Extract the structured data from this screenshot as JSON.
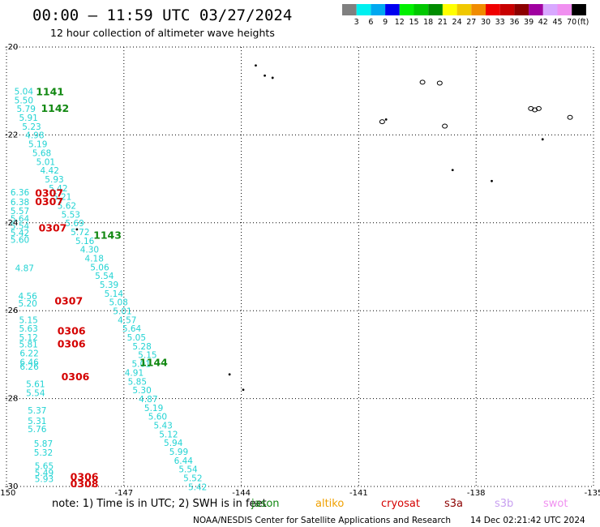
{
  "header": {
    "title": "00:00 – 11:59 UTC 03/27/2024",
    "subtitle": "12 hour collection of altimeter wave heights"
  },
  "legend": {
    "labels": [
      "3",
      "6",
      "9",
      "12",
      "15",
      "18",
      "21",
      "24",
      "27",
      "30",
      "33",
      "36",
      "39",
      "42",
      "45",
      "70"
    ],
    "unit": "(ft)",
    "colors": [
      "#808080",
      "#00f0f0",
      "#00a8f0",
      "#0000f0",
      "#00f000",
      "#00c800",
      "#008c00",
      "#ffff00",
      "#f0c800",
      "#f08c00",
      "#f00000",
      "#c80000",
      "#8c0000",
      "#a000a0",
      "#d8a8ff",
      "#f090f0",
      "#000000"
    ]
  },
  "map": {
    "lon_range": [
      -150,
      -135
    ],
    "lat_range": [
      -30,
      -20
    ],
    "lon_ticks": [
      "-150",
      "-147",
      "-144",
      "-141",
      "-138",
      "-135"
    ],
    "lat_ticks": [
      "-20",
      "-22",
      "-24",
      "-26",
      "-28",
      "-30"
    ],
    "grid_style": "dotted",
    "swh_color": "#22d3d3",
    "islands": [
      {
        "lon": -143.63,
        "lat": -20.42
      },
      {
        "lon": -143.4,
        "lat": -20.65
      },
      {
        "lon": -143.2,
        "lat": -20.7
      },
      {
        "lon": -140.3,
        "lat": -21.65
      },
      {
        "lon": -138.6,
        "lat": -22.8
      },
      {
        "lon": -137.6,
        "lat": -23.05
      },
      {
        "lon": -136.3,
        "lat": -22.1
      },
      {
        "lon": -144.3,
        "lat": -27.45
      },
      {
        "lon": -143.95,
        "lat": -27.8
      },
      {
        "lon": -148.2,
        "lat": -24.15
      }
    ],
    "island_rings": [
      {
        "lon": -139.37,
        "lat": -20.8
      },
      {
        "lon": -138.93,
        "lat": -20.82
      },
      {
        "lon": -140.4,
        "lat": -21.7
      },
      {
        "lon": -138.8,
        "lat": -21.8
      },
      {
        "lon": -136.6,
        "lat": -21.4
      },
      {
        "lon": -136.5,
        "lat": -21.43
      },
      {
        "lon": -136.4,
        "lat": -21.4
      },
      {
        "lon": -135.6,
        "lat": -21.6
      }
    ],
    "track_labels": [
      {
        "lon": -149.8,
        "lat": -21.08,
        "v": "5.04"
      },
      {
        "lon": -149.8,
        "lat": -21.28,
        "v": "5.50"
      },
      {
        "lon": -149.74,
        "lat": -21.48,
        "v": "5.79"
      },
      {
        "lon": -149.68,
        "lat": -21.68,
        "v": "5.91"
      },
      {
        "lon": -149.6,
        "lat": -21.88,
        "v": "5.23"
      },
      {
        "lon": -149.52,
        "lat": -22.08,
        "v": "4.98"
      },
      {
        "lon": -149.44,
        "lat": -22.28,
        "v": "5.19"
      },
      {
        "lon": -149.34,
        "lat": -22.48,
        "v": "5.68"
      },
      {
        "lon": -149.24,
        "lat": -22.68,
        "v": "5.01"
      },
      {
        "lon": -149.14,
        "lat": -22.88,
        "v": "4.42"
      },
      {
        "lon": -149.02,
        "lat": -23.08,
        "v": "5.93"
      },
      {
        "lon": -148.92,
        "lat": -23.28,
        "v": "5.42"
      },
      {
        "lon": -148.82,
        "lat": -23.48,
        "v": "5.21"
      },
      {
        "lon": -148.7,
        "lat": -23.68,
        "v": "5.62"
      },
      {
        "lon": -148.6,
        "lat": -23.88,
        "v": "5.53"
      },
      {
        "lon": -148.5,
        "lat": -24.08,
        "v": "5.69"
      },
      {
        "lon": -148.36,
        "lat": -24.28,
        "v": "5.72"
      },
      {
        "lon": -148.24,
        "lat": -24.48,
        "v": "5.16"
      },
      {
        "lon": -148.12,
        "lat": -24.68,
        "v": "4.30"
      },
      {
        "lon": -148.0,
        "lat": -24.88,
        "v": "4.18"
      },
      {
        "lon": -147.86,
        "lat": -25.08,
        "v": "5.06"
      },
      {
        "lon": -147.74,
        "lat": -25.28,
        "v": "5.54"
      },
      {
        "lon": -147.62,
        "lat": -25.48,
        "v": "5.39"
      },
      {
        "lon": -147.5,
        "lat": -25.68,
        "v": "5.14"
      },
      {
        "lon": -147.38,
        "lat": -25.88,
        "v": "5.08"
      },
      {
        "lon": -147.28,
        "lat": -26.08,
        "v": "5.01"
      },
      {
        "lon": -147.16,
        "lat": -26.28,
        "v": "4.57"
      },
      {
        "lon": -147.04,
        "lat": -26.48,
        "v": "5.64"
      },
      {
        "lon": -146.92,
        "lat": -26.68,
        "v": "5.05"
      },
      {
        "lon": -146.78,
        "lat": -26.88,
        "v": "5.28"
      },
      {
        "lon": -146.64,
        "lat": -27.08,
        "v": "5.15"
      },
      {
        "lon": -146.8,
        "lat": -27.28,
        "v": "5.01"
      },
      {
        "lon": -146.98,
        "lat": -27.48,
        "v": "4.91"
      },
      {
        "lon": -146.9,
        "lat": -27.68,
        "v": "5.85"
      },
      {
        "lon": -146.78,
        "lat": -27.88,
        "v": "5.30"
      },
      {
        "lon": -146.62,
        "lat": -28.08,
        "v": "4.87"
      },
      {
        "lon": -146.48,
        "lat": -28.28,
        "v": "5.19"
      },
      {
        "lon": -146.38,
        "lat": -28.48,
        "v": "5.60"
      },
      {
        "lon": -146.24,
        "lat": -28.68,
        "v": "5.43"
      },
      {
        "lon": -146.1,
        "lat": -28.88,
        "v": "5.12"
      },
      {
        "lon": -145.98,
        "lat": -29.08,
        "v": "5.94"
      },
      {
        "lon": -145.84,
        "lat": -29.28,
        "v": "5.99"
      },
      {
        "lon": -145.72,
        "lat": -29.48,
        "v": "6.44"
      },
      {
        "lon": -145.6,
        "lat": -29.68,
        "v": "5.54"
      },
      {
        "lon": -145.48,
        "lat": -29.88,
        "v": "5.52"
      },
      {
        "lon": -145.36,
        "lat": -30.08,
        "v": "5.42"
      },
      {
        "lon": -149.9,
        "lat": -23.38,
        "v": "6.36"
      },
      {
        "lon": -149.9,
        "lat": -23.6,
        "v": "6.38"
      },
      {
        "lon": -149.9,
        "lat": -23.8,
        "v": "5.57"
      },
      {
        "lon": -149.9,
        "lat": -23.98,
        "v": "5.64"
      },
      {
        "lon": -149.9,
        "lat": -24.14,
        "v": "5.54"
      },
      {
        "lon": -149.9,
        "lat": -24.3,
        "v": "5.42"
      },
      {
        "lon": -149.9,
        "lat": -24.46,
        "v": "5.60"
      },
      {
        "lon": -149.78,
        "lat": -25.1,
        "v": "4.87"
      },
      {
        "lon": -149.7,
        "lat": -25.74,
        "v": "4.56"
      },
      {
        "lon": -149.7,
        "lat": -25.9,
        "v": "5.20"
      },
      {
        "lon": -149.68,
        "lat": -26.28,
        "v": "5.15"
      },
      {
        "lon": -149.68,
        "lat": -26.48,
        "v": "5.63"
      },
      {
        "lon": -149.68,
        "lat": -26.68,
        "v": "5.12"
      },
      {
        "lon": -149.68,
        "lat": -26.84,
        "v": "5.81"
      },
      {
        "lon": -149.66,
        "lat": -27.04,
        "v": "6.22"
      },
      {
        "lon": -149.66,
        "lat": -27.24,
        "v": "6.46"
      },
      {
        "lon": -149.66,
        "lat": -27.34,
        "v": "6.26"
      },
      {
        "lon": -149.5,
        "lat": -27.74,
        "v": "5.61"
      },
      {
        "lon": -149.5,
        "lat": -27.94,
        "v": "5.54"
      },
      {
        "lon": -149.46,
        "lat": -28.34,
        "v": "5.37"
      },
      {
        "lon": -149.46,
        "lat": -28.58,
        "v": "5.31"
      },
      {
        "lon": -149.46,
        "lat": -28.76,
        "v": "5.76"
      },
      {
        "lon": -149.3,
        "lat": -29.1,
        "v": "5.87"
      },
      {
        "lon": -149.3,
        "lat": -29.3,
        "v": "5.32"
      },
      {
        "lon": -149.28,
        "lat": -29.6,
        "v": "5.65"
      },
      {
        "lon": -149.28,
        "lat": -29.76,
        "v": "5.49"
      },
      {
        "lon": -149.28,
        "lat": -29.9,
        "v": "5.93"
      }
    ],
    "pass_labels": [
      {
        "lon": -149.25,
        "lat": -21.1,
        "v": "1141",
        "sat": "jason"
      },
      {
        "lon": -149.12,
        "lat": -21.48,
        "v": "1142",
        "sat": "jason"
      },
      {
        "lon": -147.78,
        "lat": -24.36,
        "v": "1143",
        "sat": "jason"
      },
      {
        "lon": -146.6,
        "lat": -27.26,
        "v": "1144",
        "sat": "jason"
      },
      {
        "lon": -149.27,
        "lat": -23.4,
        "v": "0307",
        "sat": "cryosat"
      },
      {
        "lon": -149.27,
        "lat": -23.6,
        "v": "0307",
        "sat": "cryosat"
      },
      {
        "lon": -149.18,
        "lat": -24.2,
        "v": "0307",
        "sat": "cryosat"
      },
      {
        "lon": -148.77,
        "lat": -25.86,
        "v": "0307",
        "sat": "cryosat"
      },
      {
        "lon": -148.7,
        "lat": -26.54,
        "v": "0306",
        "sat": "cryosat"
      },
      {
        "lon": -148.7,
        "lat": -26.84,
        "v": "0306",
        "sat": "cryosat"
      },
      {
        "lon": -148.6,
        "lat": -27.58,
        "v": "0306",
        "sat": "cryosat"
      },
      {
        "lon": -148.37,
        "lat": -29.86,
        "v": "0306",
        "sat": "cryosat"
      },
      {
        "lon": -148.37,
        "lat": -30.02,
        "v": "0308",
        "sat": "cryosat"
      }
    ]
  },
  "note": {
    "text": "note:  1) Time is in UTC; 2) SWH is in feet",
    "satellites": [
      {
        "name": "jason",
        "color": "#118811"
      },
      {
        "name": "altiko",
        "color": "#f0a000"
      },
      {
        "name": "cryosat",
        "color": "#d40000"
      },
      {
        "name": "s3a",
        "color": "#8c0000"
      },
      {
        "name": "s3b",
        "color": "#c8a0f0"
      },
      {
        "name": "swot",
        "color": "#f090f0"
      }
    ]
  },
  "footer": {
    "agency": "NOAA/NESDIS Center for Satellite Applications and Research",
    "generated": "14 Dec 02:21:42 UTC 2024"
  }
}
